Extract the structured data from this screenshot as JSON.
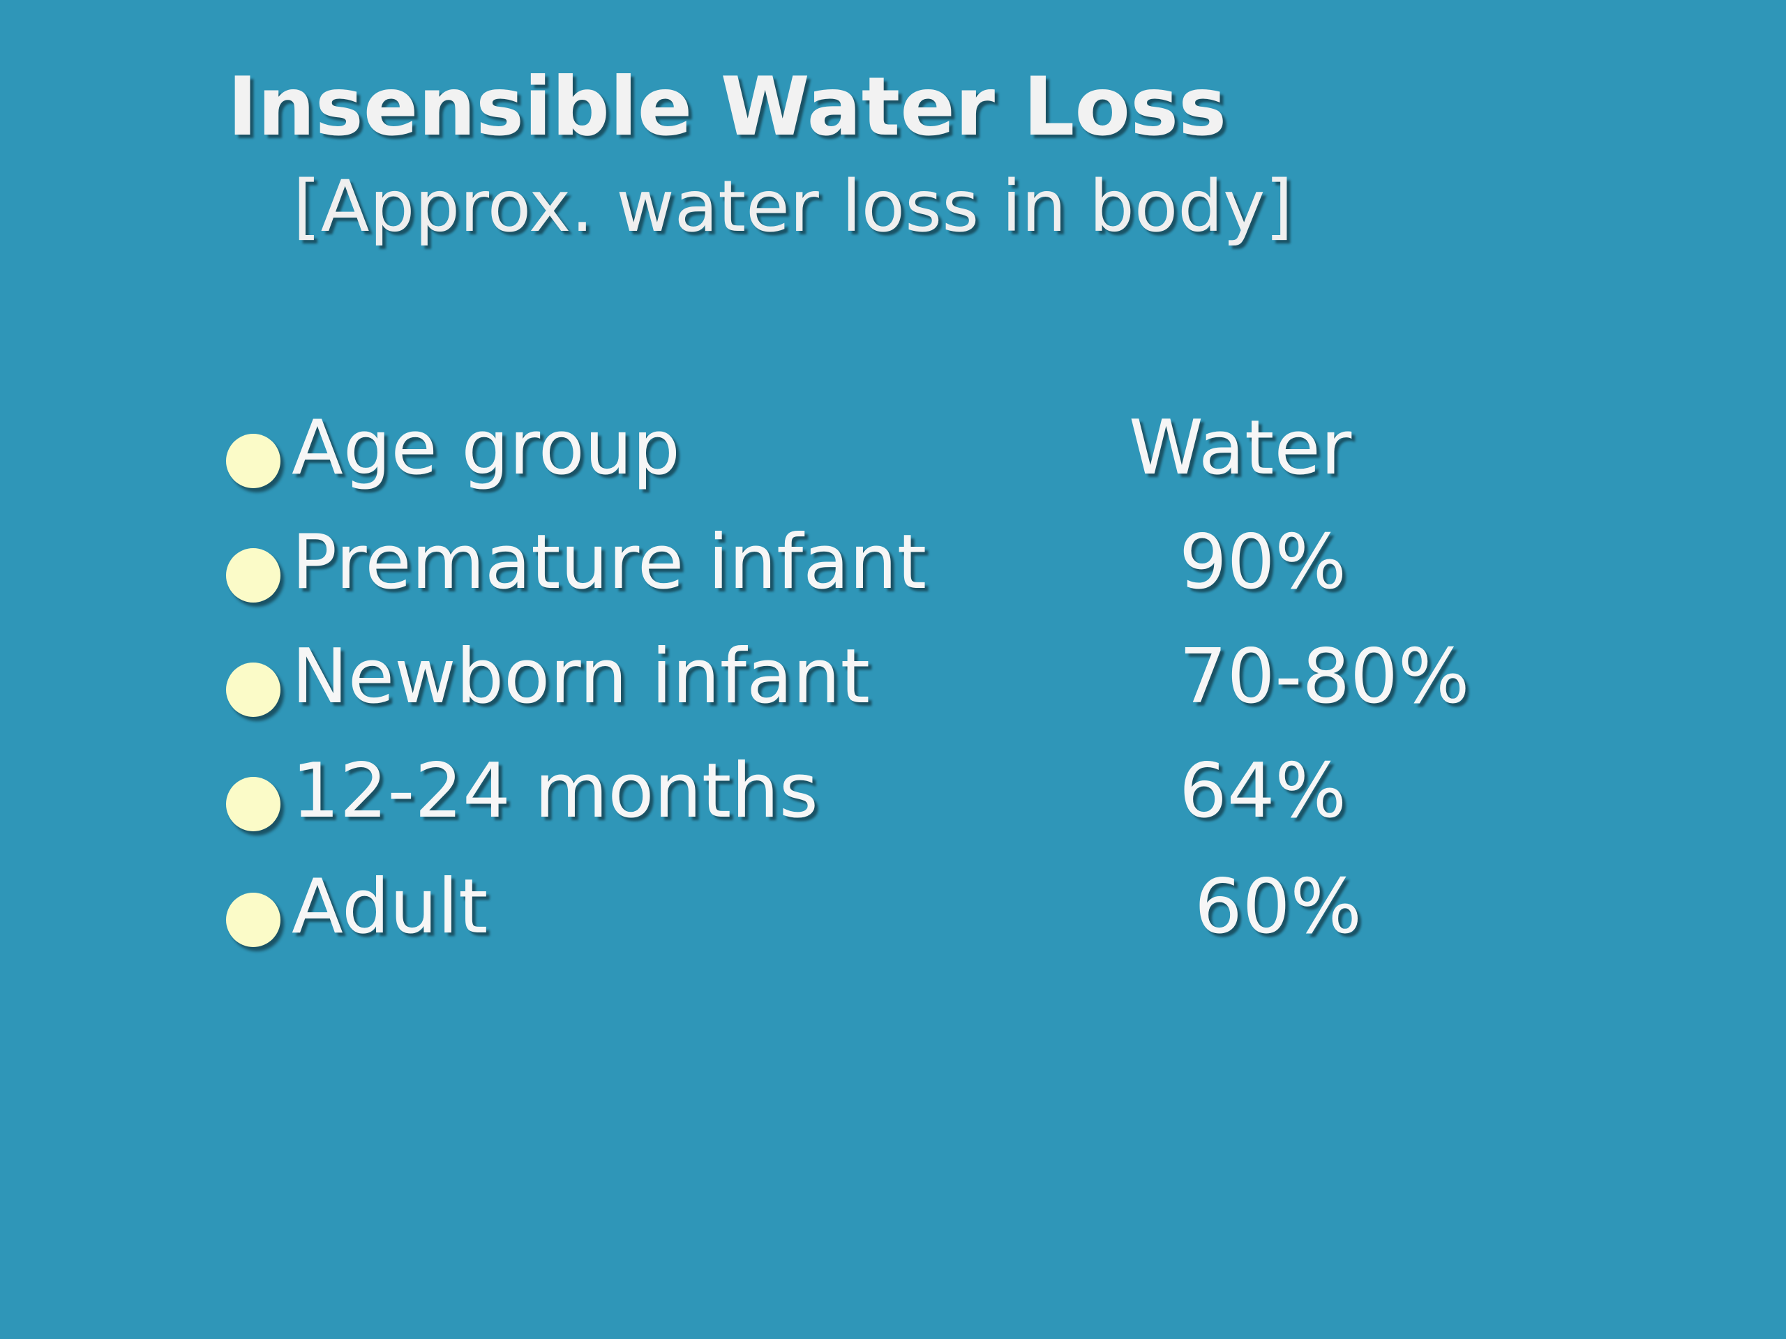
{
  "slide": {
    "title": "Insensible Water Loss",
    "subtitle": "[Approx. water loss in body]",
    "bullet_color": "#fbfbc8",
    "background_color": "#2f96b8",
    "rows": [
      {
        "label": "Age group",
        "value": "Water"
      },
      {
        "label": "Premature infant",
        "value": "90%"
      },
      {
        "label": "Newborn infant",
        "value": "70-80%"
      },
      {
        "label": "12-24 months",
        "value": "64%"
      },
      {
        "label": "Adult",
        "value": "60%"
      }
    ]
  }
}
